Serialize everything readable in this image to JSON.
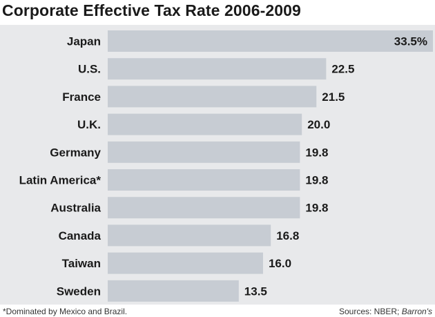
{
  "title": "Corporate Effective Tax Rate 2006-2009",
  "footnote": "*Dominated by Mexico and Brazil.",
  "source_prefix": "Sources: NBER; ",
  "source_italic": "Barron's",
  "colors": {
    "bar": "#c7ccd3",
    "background": "#e8e9eb",
    "text": "#1a1a1a"
  },
  "chart_data": {
    "type": "bar",
    "orientation": "horizontal",
    "title": "Corporate Effective Tax Rate 2006-2009",
    "categories": [
      "Japan",
      "U.S.",
      "France",
      "U.K.",
      "Germany",
      "Latin America*",
      "Australia",
      "Canada",
      "Taiwan",
      "Sweden"
    ],
    "values": [
      33.5,
      22.5,
      21.5,
      20.0,
      19.8,
      19.8,
      19.8,
      16.8,
      16.0,
      13.5
    ],
    "value_labels": [
      "33.5%",
      "22.5",
      "21.5",
      "20.0",
      "19.8",
      "19.8",
      "19.8",
      "16.8",
      "16.0",
      "13.5"
    ],
    "xlabel": "",
    "ylabel": "",
    "xlim": [
      0,
      33.5
    ],
    "grid": false,
    "legend": "none"
  }
}
